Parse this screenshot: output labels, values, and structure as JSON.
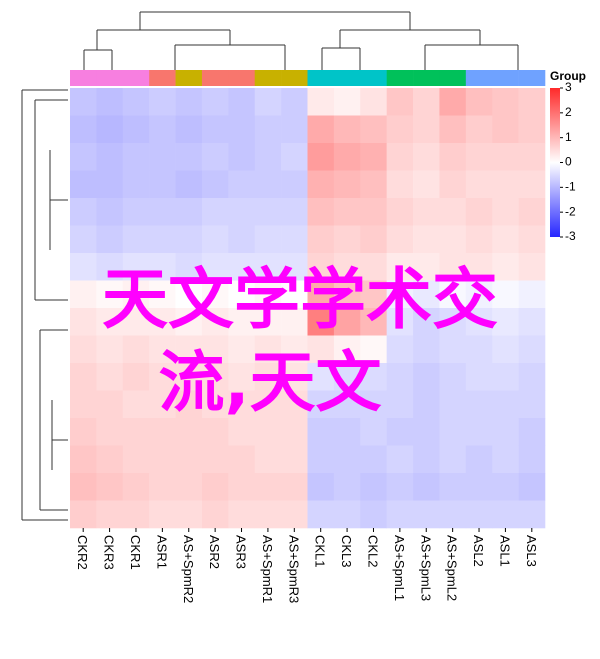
{
  "chart_data": {
    "type": "heatmap",
    "columns": [
      "CKR2",
      "CKR3",
      "CKR1",
      "ASR1",
      "AS+SpmR2",
      "ASR2",
      "ASR3",
      "AS+SpmR1",
      "AS+SpmR3",
      "CKL1",
      "CKL3",
      "CKL2",
      "AS+SpmL1",
      "AS+SpmL3",
      "AS+SpmL2",
      "ASL2",
      "ASL1",
      "ASL3"
    ],
    "group_title": "Group",
    "group_colors": [
      "#f77fe0",
      "#f77fe0",
      "#f77fe0",
      "#f8766d",
      "#c8b100",
      "#f8766d",
      "#f8766d",
      "#c8b100",
      "#c8b100",
      "#00c4c8",
      "#00c4c8",
      "#00c4c8",
      "#00c15a",
      "#00c15a",
      "#00c15a",
      "#6fa2ff",
      "#6fa2ff",
      "#6fa2ff"
    ],
    "zlim": [
      -3,
      3
    ],
    "colorbar_ticks": [
      3,
      2,
      1,
      0,
      -1,
      -2,
      -3
    ],
    "colors": {
      "low": "#2626ff",
      "mid": "#ffffff",
      "high": "#ff2a2a"
    },
    "z": [
      [
        -0.8,
        -0.9,
        -0.8,
        -0.7,
        -0.8,
        -0.7,
        -0.8,
        -0.6,
        -0.7,
        0.3,
        0.2,
        0.4,
        0.8,
        0.6,
        1.2,
        0.9,
        0.8,
        0.7
      ],
      [
        -0.9,
        -1,
        -0.9,
        -0.8,
        -0.9,
        -0.8,
        -0.8,
        -0.7,
        -0.7,
        1.2,
        1,
        0.9,
        0.7,
        0.6,
        0.9,
        0.7,
        0.8,
        0.7
      ],
      [
        -0.8,
        -0.9,
        -0.8,
        -0.8,
        -0.8,
        -0.7,
        -0.8,
        -0.7,
        -0.6,
        1.4,
        1.2,
        1.1,
        0.6,
        0.5,
        0.7,
        0.6,
        0.6,
        0.6
      ],
      [
        -0.9,
        -0.9,
        -0.8,
        -0.8,
        -0.9,
        -0.8,
        -0.7,
        -0.7,
        -0.7,
        1.1,
        1,
        0.9,
        0.5,
        0.4,
        0.6,
        0.5,
        0.5,
        0.5
      ],
      [
        -0.7,
        -0.8,
        -0.7,
        -0.7,
        -0.7,
        -0.6,
        -0.6,
        -0.6,
        -0.6,
        0.9,
        0.8,
        0.8,
        0.6,
        0.5,
        0.5,
        0.6,
        0.5,
        0.6
      ],
      [
        -0.6,
        -0.7,
        -0.6,
        -0.6,
        -0.6,
        -0.5,
        -0.6,
        -0.5,
        -0.5,
        0.7,
        0.6,
        0.7,
        0.5,
        0.4,
        0.4,
        0.5,
        0.4,
        0.5
      ],
      [
        -0.4,
        -0.5,
        -0.4,
        -0.4,
        -0.5,
        -0.4,
        -0.4,
        -0.4,
        -0.4,
        0.6,
        0.5,
        0.5,
        0.3,
        0.3,
        0.4,
        0.4,
        0.3,
        0.4
      ],
      [
        0.2,
        0.1,
        0.2,
        0.1,
        0,
        0.1,
        0,
        0.1,
        0,
        1.2,
        0.9,
        0.8,
        -0.2,
        -0.3,
        -0.1,
        -0.2,
        -0.1,
        -0.2
      ],
      [
        0.4,
        0.3,
        0.3,
        0.3,
        0.2,
        0.3,
        0.2,
        0.2,
        0.2,
        1.8,
        1.3,
        1,
        -0.4,
        -0.6,
        -0.5,
        -0.4,
        -0.3,
        -0.4
      ],
      [
        0.5,
        0.4,
        0.5,
        0.4,
        0.4,
        0.4,
        0.3,
        0.4,
        0.3,
        0.4,
        0.2,
        0.1,
        -0.5,
        -0.6,
        -0.5,
        -0.5,
        -0.4,
        -0.5
      ],
      [
        0.6,
        0.5,
        0.6,
        0.5,
        0.5,
        0.5,
        0.4,
        0.5,
        0.4,
        -0.4,
        -0.5,
        -0.5,
        -0.6,
        -0.7,
        -0.6,
        -0.5,
        -0.5,
        -0.6
      ],
      [
        0.6,
        0.6,
        0.5,
        0.5,
        0.6,
        0.5,
        0.5,
        0.5,
        0.5,
        -0.6,
        -0.6,
        -0.6,
        -0.6,
        -0.7,
        -0.6,
        -0.6,
        -0.6,
        -0.6
      ],
      [
        0.7,
        0.6,
        0.6,
        0.6,
        0.6,
        0.6,
        0.5,
        0.5,
        0.5,
        -0.7,
        -0.7,
        -0.6,
        -0.7,
        -0.7,
        -0.6,
        -0.6,
        -0.6,
        -0.7
      ],
      [
        0.8,
        0.7,
        0.6,
        0.6,
        0.6,
        0.6,
        0.6,
        0.5,
        0.5,
        -0.7,
        -0.7,
        -0.7,
        -0.6,
        -0.7,
        -0.6,
        -0.7,
        -0.6,
        -0.7
      ],
      [
        0.9,
        0.8,
        0.7,
        0.6,
        0.6,
        0.7,
        0.6,
        0.6,
        0.6,
        -0.8,
        -0.7,
        -0.8,
        -0.7,
        -0.8,
        -0.7,
        -0.7,
        -0.7,
        -0.8
      ],
      [
        0.7,
        0.6,
        0.6,
        0.5,
        0.5,
        0.6,
        0.5,
        0.5,
        0.5,
        -0.6,
        -0.6,
        -0.7,
        -0.6,
        -0.6,
        -0.6,
        -0.6,
        -0.6,
        -0.6
      ]
    ],
    "overlay_text": [
      "天文学学术交",
      "流,天文"
    ]
  }
}
